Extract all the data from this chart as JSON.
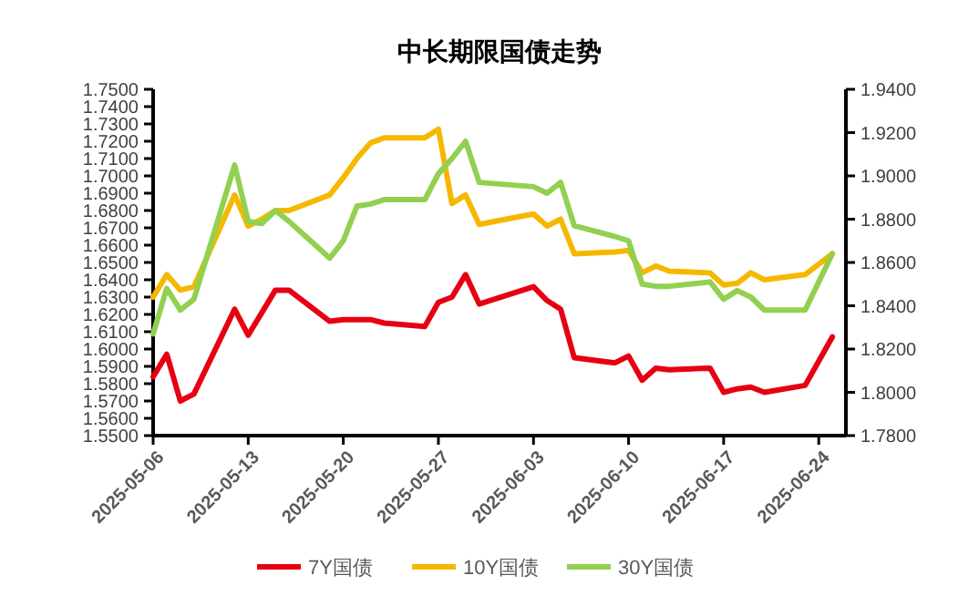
{
  "chart_data": {
    "type": "line",
    "title": "中长期限国债走势",
    "x": [
      "2025-05-06",
      "2025-05-07",
      "2025-05-08",
      "2025-05-09",
      "2025-05-12",
      "2025-05-13",
      "2025-05-14",
      "2025-05-15",
      "2025-05-16",
      "2025-05-19",
      "2025-05-20",
      "2025-05-21",
      "2025-05-22",
      "2025-05-23",
      "2025-05-26",
      "2025-05-27",
      "2025-05-28",
      "2025-05-29",
      "2025-05-30",
      "2025-06-03",
      "2025-06-04",
      "2025-06-05",
      "2025-06-06",
      "2025-06-09",
      "2025-06-10",
      "2025-06-11",
      "2025-06-12",
      "2025-06-13",
      "2025-06-16",
      "2025-06-17",
      "2025-06-18",
      "2025-06-19",
      "2025-06-20",
      "2025-06-23",
      "2025-06-24",
      "2025-06-25"
    ],
    "series": [
      {
        "name": "7Y国债",
        "color": "#e60012",
        "values": [
          1.584,
          1.597,
          1.57,
          1.574,
          1.623,
          1.608,
          1.621,
          1.634,
          1.634,
          1.616,
          1.617,
          1.617,
          1.617,
          1.615,
          1.613,
          1.627,
          1.63,
          1.643,
          1.626,
          1.636,
          1.628,
          1.623,
          1.595,
          1.592,
          1.596,
          1.582,
          1.589,
          1.588,
          1.589,
          1.575,
          1.577,
          1.578,
          1.575,
          1.579,
          1.593,
          1.607
        ]
      },
      {
        "name": "10Y国债",
        "color": "#f5b800",
        "values": [
          1.63,
          1.643,
          1.634,
          1.636,
          1.689,
          1.671,
          1.675,
          1.68,
          1.68,
          1.689,
          1.699,
          1.71,
          1.719,
          1.722,
          1.722,
          1.727,
          1.684,
          1.689,
          1.672,
          1.678,
          1.671,
          1.675,
          1.655,
          1.656,
          1.657,
          1.644,
          1.648,
          1.645,
          1.644,
          1.637,
          1.638,
          1.644,
          1.64,
          1.643,
          1.649,
          1.655
        ]
      },
      {
        "name": "30Y国债",
        "color": "#92d050",
        "axis": "y2",
        "values": [
          1.827,
          1.848,
          1.838,
          1.843,
          1.905,
          1.879,
          1.878,
          1.884,
          1.879,
          1.862,
          1.87,
          1.886,
          1.887,
          1.889,
          1.889,
          1.901,
          1.908,
          1.916,
          1.897,
          1.895,
          1.892,
          1.897,
          1.877,
          1.872,
          1.87,
          1.85,
          1.849,
          1.849,
          1.851,
          1.843,
          1.847,
          1.844,
          1.838,
          1.838,
          1.851,
          1.864
        ]
      }
    ],
    "xlim": [
      "2025-05-06",
      "2025-06-26"
    ],
    "xticks": [
      "2025-05-06",
      "2025-05-13",
      "2025-05-20",
      "2025-05-27",
      "2025-06-03",
      "2025-06-10",
      "2025-06-17",
      "2025-06-24"
    ],
    "ylim": [
      1.55,
      1.75
    ],
    "yticks": [
      {
        "value": 1.55,
        "label": "1.5500"
      },
      {
        "value": 1.56,
        "label": "1.5600"
      },
      {
        "value": 1.57,
        "label": "1.5700"
      },
      {
        "value": 1.58,
        "label": "1.5800"
      },
      {
        "value": 1.59,
        "label": "1.5900"
      },
      {
        "value": 1.6,
        "label": "1.6000"
      },
      {
        "value": 1.61,
        "label": "1.6100"
      },
      {
        "value": 1.62,
        "label": "1.6200"
      },
      {
        "value": 1.63,
        "label": "1.6300"
      },
      {
        "value": 1.64,
        "label": "1.6400"
      },
      {
        "value": 1.65,
        "label": "1.6500"
      },
      {
        "value": 1.66,
        "label": "1.6600"
      },
      {
        "value": 1.67,
        "label": "1.6700"
      },
      {
        "value": 1.68,
        "label": "1.6800"
      },
      {
        "value": 1.69,
        "label": "1.6900"
      },
      {
        "value": 1.7,
        "label": "1.7000"
      },
      {
        "value": 1.71,
        "label": "1.7100"
      },
      {
        "value": 1.72,
        "label": "1.7200"
      },
      {
        "value": 1.73,
        "label": "1.7300"
      },
      {
        "value": 1.74,
        "label": "1.7400"
      },
      {
        "value": 1.75,
        "label": "1.7500"
      }
    ],
    "y2lim": [
      1.78,
      1.94
    ],
    "y2ticks": [
      {
        "value": 1.78,
        "label": "1.7800"
      },
      {
        "value": 1.8,
        "label": "1.8000"
      },
      {
        "value": 1.82,
        "label": "1.8200"
      },
      {
        "value": 1.84,
        "label": "1.8400"
      },
      {
        "value": 1.86,
        "label": "1.8600"
      },
      {
        "value": 1.88,
        "label": "1.8800"
      },
      {
        "value": 1.9,
        "label": "1.9000"
      },
      {
        "value": 1.92,
        "label": "1.9200"
      },
      {
        "value": 1.94,
        "label": "1.9400"
      }
    ],
    "grid": false,
    "legend": "bottom",
    "marker": "none",
    "line_style": "solid"
  }
}
